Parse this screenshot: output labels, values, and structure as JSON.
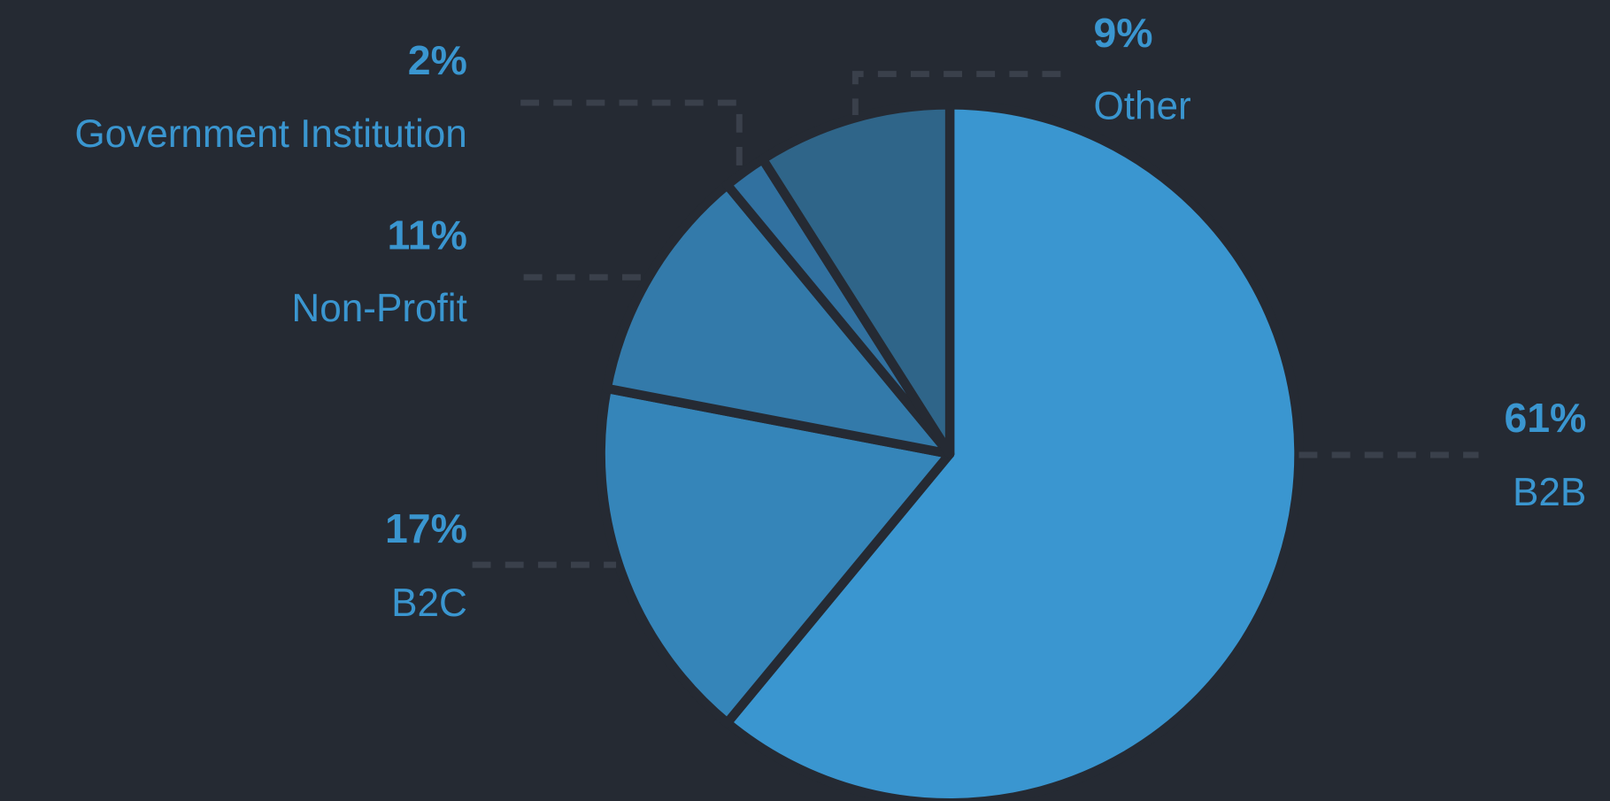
{
  "chart_data": {
    "type": "pie",
    "categories": [
      "B2B",
      "B2C",
      "Non-Profit",
      "Government Institution",
      "Other"
    ],
    "values": [
      61,
      17,
      11,
      2,
      9
    ],
    "value_labels": [
      "61%",
      "17%",
      "11%",
      "2%",
      "9%"
    ],
    "colors": [
      "#3a96d0",
      "#3585b9",
      "#337aaa",
      "#3171a0",
      "#2f6589"
    ]
  }
}
